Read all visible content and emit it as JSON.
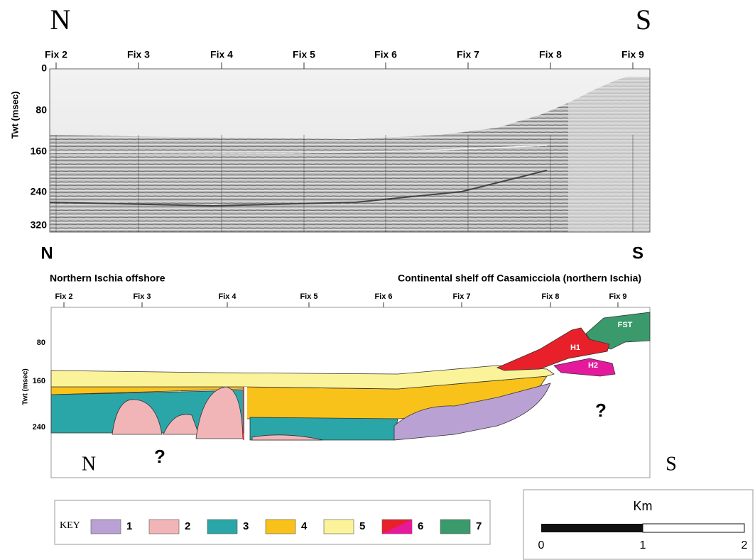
{
  "seismic": {
    "left": "N",
    "right": "S",
    "fixes": [
      "Fix 2",
      "Fix 3",
      "Fix 4",
      "Fix 5",
      "Fix 6",
      "Fix 7",
      "Fix 8",
      "Fix 9"
    ],
    "axis_label": "Twt (msec)",
    "yticks": [
      "0",
      "80",
      "160",
      "240",
      "320"
    ]
  },
  "interpretation": {
    "left": "N",
    "right": "S",
    "left_title": "Northern Ischia offshore",
    "right_title": "Continental shelf off Casamicciola (northern Ischia)",
    "fixes": [
      "Fix 2",
      "Fix 3",
      "Fix 4",
      "Fix 5",
      "Fix 6",
      "Fix 7",
      "Fix 8",
      "Fix 9"
    ],
    "axis_label": "Twt (msec)",
    "yticks": [
      "80",
      "160",
      "240"
    ],
    "units": [
      "FST",
      "H1",
      "H2"
    ],
    "unknown": [
      "?",
      "?"
    ],
    "bottom_left": "N",
    "bottom_right": "S"
  },
  "key": {
    "label": "KEY",
    "items": [
      {
        "label": "1",
        "color": "#b9a1d3"
      },
      {
        "label": "2",
        "color": "#f1b5b8"
      },
      {
        "label": "3",
        "color": "#2aa6a8"
      },
      {
        "label": "4",
        "color": "#f9c21a"
      },
      {
        "label": "5",
        "color": "#fbf39a"
      },
      {
        "label": "6",
        "color": "#e8202a"
      },
      {
        "label": "7",
        "color": "#3a9a6c"
      }
    ]
  },
  "scale": {
    "title": "Km",
    "ticks": [
      "0",
      "1",
      "2"
    ]
  }
}
